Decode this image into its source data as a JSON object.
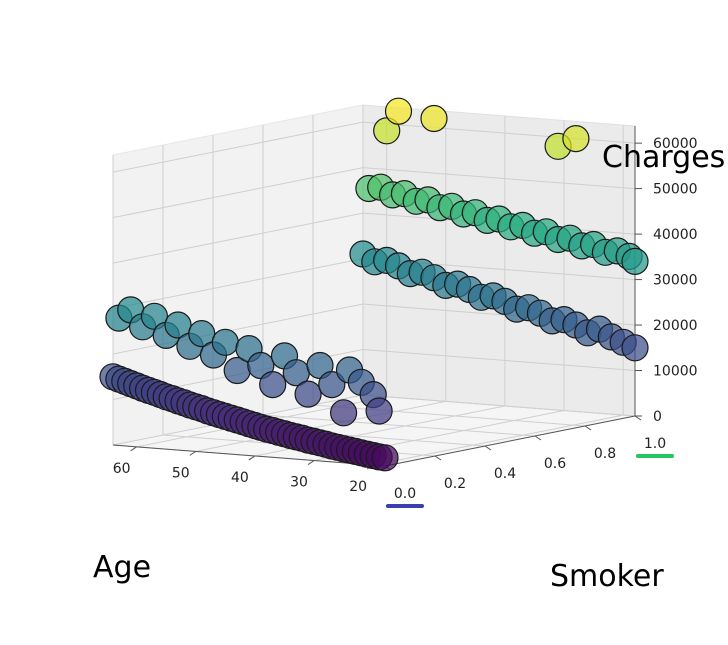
{
  "chart_data": {
    "type": "scatter",
    "projection": "3d",
    "title": "",
    "xlabel": "Age",
    "ylabel": "Smoker",
    "zlabel": "Charges",
    "xlim": [
      18,
      64
    ],
    "ylim": [
      0,
      1
    ],
    "zlim": [
      0,
      63770
    ],
    "x_ticks": [
      "20",
      "30",
      "40",
      "50",
      "60"
    ],
    "y_ticks": [
      "0.0",
      "0.2",
      "0.4",
      "0.6",
      "0.8",
      "1.0"
    ],
    "z_ticks": [
      "0",
      "10000",
      "20000",
      "30000",
      "40000",
      "50000",
      "60000"
    ],
    "colormap": "viridis",
    "color_by": "Charges",
    "grid": true,
    "highlight": {
      "0.0": "#3a3fb0",
      "1.0": "#22c55e"
    },
    "series": [
      {
        "smoker": 0,
        "points": [
          [
            18,
            1800
          ],
          [
            19,
            1900
          ],
          [
            20,
            2100
          ],
          [
            21,
            2300
          ],
          [
            22,
            2500
          ],
          [
            23,
            2700
          ],
          [
            24,
            2900
          ],
          [
            25,
            3100
          ],
          [
            26,
            3300
          ],
          [
            27,
            3500
          ],
          [
            28,
            3800
          ],
          [
            29,
            4000
          ],
          [
            30,
            4200
          ],
          [
            31,
            4400
          ],
          [
            32,
            4700
          ],
          [
            33,
            4900
          ],
          [
            34,
            5100
          ],
          [
            35,
            5400
          ],
          [
            36,
            5600
          ],
          [
            37,
            5900
          ],
          [
            38,
            6100
          ],
          [
            39,
            6400
          ],
          [
            40,
            6700
          ],
          [
            41,
            7000
          ],
          [
            42,
            7300
          ],
          [
            43,
            7600
          ],
          [
            44,
            7900
          ],
          [
            45,
            8200
          ],
          [
            46,
            8500
          ],
          [
            47,
            8800
          ],
          [
            48,
            9100
          ],
          [
            49,
            9500
          ],
          [
            50,
            9800
          ],
          [
            51,
            10100
          ],
          [
            52,
            10500
          ],
          [
            53,
            10800
          ],
          [
            54,
            11200
          ],
          [
            55,
            11500
          ],
          [
            56,
            11900
          ],
          [
            57,
            12300
          ],
          [
            58,
            12600
          ],
          [
            59,
            13000
          ],
          [
            60,
            13400
          ],
          [
            61,
            13800
          ],
          [
            62,
            14200
          ],
          [
            63,
            14600
          ],
          [
            64,
            15000
          ],
          [
            19,
            12000
          ],
          [
            20,
            15500
          ],
          [
            22,
            18000
          ],
          [
            24,
            20500
          ],
          [
            25,
            11000
          ],
          [
            27,
            17000
          ],
          [
            29,
            21000
          ],
          [
            31,
            14500
          ],
          [
            33,
            19000
          ],
          [
            35,
            22500
          ],
          [
            37,
            16000
          ],
          [
            39,
            20000
          ],
          [
            41,
            23500
          ],
          [
            43,
            18500
          ],
          [
            45,
            24500
          ],
          [
            47,
            21500
          ],
          [
            49,
            26000
          ],
          [
            51,
            23000
          ],
          [
            53,
            27500
          ],
          [
            55,
            25000
          ],
          [
            57,
            29000
          ],
          [
            59,
            26500
          ],
          [
            61,
            30000
          ],
          [
            63,
            28000
          ]
        ]
      },
      {
        "smoker": 1,
        "points": [
          [
            18,
            34000
          ],
          [
            19,
            35000
          ],
          [
            21,
            36000
          ],
          [
            23,
            35500
          ],
          [
            25,
            37000
          ],
          [
            27,
            36500
          ],
          [
            29,
            38000
          ],
          [
            31,
            37500
          ],
          [
            33,
            39000
          ],
          [
            35,
            38500
          ],
          [
            37,
            40000
          ],
          [
            39,
            39500
          ],
          [
            41,
            41000
          ],
          [
            43,
            40500
          ],
          [
            45,
            42000
          ],
          [
            47,
            41500
          ],
          [
            49,
            43000
          ],
          [
            51,
            42500
          ],
          [
            53,
            44000
          ],
          [
            55,
            43500
          ],
          [
            57,
            45000
          ],
          [
            59,
            44500
          ],
          [
            61,
            46000
          ],
          [
            63,
            45500
          ],
          [
            18,
            15000
          ],
          [
            20,
            16000
          ],
          [
            22,
            17000
          ],
          [
            24,
            18500
          ],
          [
            26,
            17500
          ],
          [
            28,
            19000
          ],
          [
            30,
            20000
          ],
          [
            32,
            19500
          ],
          [
            34,
            21000
          ],
          [
            36,
            22000
          ],
          [
            38,
            21500
          ],
          [
            40,
            23000
          ],
          [
            42,
            24000
          ],
          [
            44,
            23500
          ],
          [
            46,
            25000
          ],
          [
            48,
            26000
          ],
          [
            50,
            25500
          ],
          [
            52,
            27000
          ],
          [
            54,
            28000
          ],
          [
            56,
            27500
          ],
          [
            58,
            29000
          ],
          [
            60,
            30000
          ],
          [
            62,
            29500
          ],
          [
            64,
            31000
          ],
          [
            28,
            60000
          ],
          [
            31,
            58000
          ],
          [
            52,
            62000
          ],
          [
            58,
            63000
          ],
          [
            60,
            58500
          ]
        ]
      }
    ]
  }
}
